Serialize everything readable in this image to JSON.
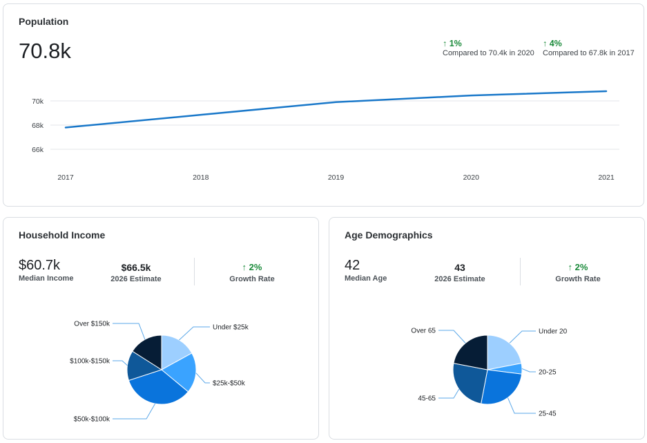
{
  "population": {
    "title": "Population",
    "value": "70.8k",
    "comparisons": [
      {
        "arrow": "↑",
        "delta": "1%",
        "text": "Compared to 70.4k in 2020"
      },
      {
        "arrow": "↑",
        "delta": "4%",
        "text": "Compared to 67.8k in 2017"
      }
    ]
  },
  "household_income": {
    "title": "Household Income",
    "median_value": "$60.7k",
    "median_label": "Median Income",
    "estimate_value": "$66.5k",
    "estimate_label": "2026 Estimate",
    "growth_arrow": "↑",
    "growth_value": "2%",
    "growth_label": "Growth Rate"
  },
  "age_demographics": {
    "title": "Age Demographics",
    "median_value": "42",
    "median_label": "Median Age",
    "estimate_value": "43",
    "estimate_label": "2026 Estimate",
    "growth_arrow": "↑",
    "growth_value": "2%",
    "growth_label": "Growth Rate"
  },
  "colors": {
    "line": "#1877c9",
    "grid": "#e3e6e9",
    "growth_green": "#1a8a3a",
    "leader": "#5aa7e8",
    "pie_light": "#9dcfff",
    "pie_mid": "#3aa3ff",
    "pie_blue": "#0a74dc",
    "pie_dark_blue": "#0f5899",
    "pie_navy": "#061d36"
  },
  "chart_data": [
    {
      "type": "line",
      "x": [
        "2017",
        "2018",
        "2019",
        "2020",
        "2021"
      ],
      "series": [
        {
          "values": [
            67.8,
            68.85,
            69.9,
            70.45,
            70.8
          ]
        }
      ],
      "yticks": [
        "66k",
        "68k",
        "70k"
      ],
      "ytick_values": [
        66,
        68,
        70
      ],
      "ylim": [
        64,
        72
      ],
      "grid": true
    },
    {
      "type": "pie",
      "categories": [
        "Under $25k",
        "$25k-$50k",
        "$50k-$100k",
        "$100k-$150k",
        "Over $150k"
      ],
      "values": [
        17,
        19,
        34,
        14,
        16
      ],
      "colors": [
        "#9dcfff",
        "#3aa3ff",
        "#0a74dc",
        "#0f5899",
        "#061d36"
      ]
    },
    {
      "type": "pie",
      "categories": [
        "Under 20",
        "20-25",
        "25-45",
        "45-65",
        "Over 65"
      ],
      "values": [
        22,
        5,
        26,
        25,
        22
      ],
      "colors": [
        "#9dcfff",
        "#3aa3ff",
        "#0a74dc",
        "#0f5899",
        "#061d36"
      ]
    }
  ]
}
